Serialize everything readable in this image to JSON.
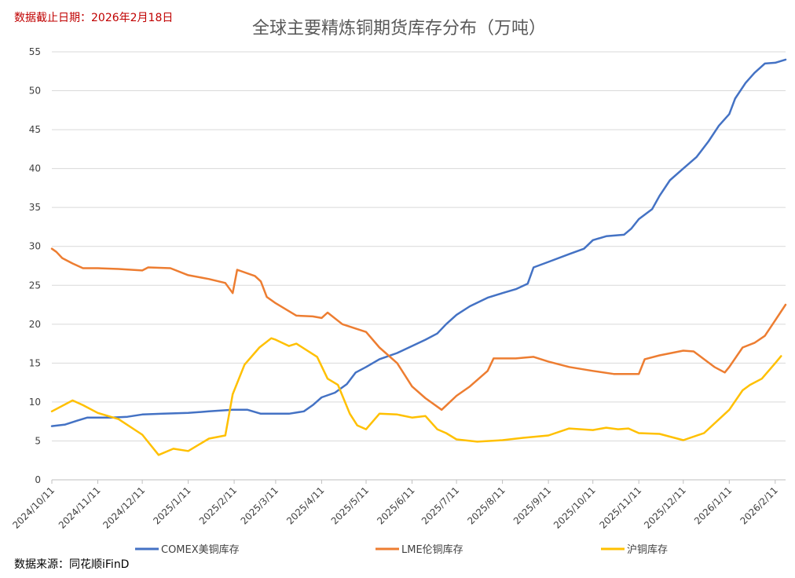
{
  "header": {
    "date_note": "数据截止日期：2026年2月18日"
  },
  "footer": {
    "source_note": "数据来源：同花顺iFinD"
  },
  "chart_data": {
    "type": "line",
    "title": "全球主要精炼铜期货库存分布（万吨）",
    "xlabel": "",
    "ylabel": "",
    "ylim": [
      0,
      55
    ],
    "yticks": [
      0,
      5,
      10,
      15,
      20,
      25,
      30,
      35,
      40,
      45,
      50,
      55
    ],
    "x_tick_labels": [
      "2024/10/11",
      "2024/11/11",
      "2024/12/11",
      "2025/1/11",
      "2025/2/11",
      "2025/3/11",
      "2025/4/11",
      "2025/5/11",
      "2025/6/11",
      "2025/7/11",
      "2025/8/11",
      "2025/9/11",
      "2025/10/11",
      "2025/11/11",
      "2025/12/11",
      "2026/1/11",
      "2026/2/11"
    ],
    "x_range": [
      "2024-10-11",
      "2026-02-18"
    ],
    "grid": true,
    "legend_position": "bottom",
    "series": [
      {
        "name": "COMEX美铜库存",
        "color": "#4472c4",
        "points": [
          [
            "2024-10-11",
            6.9
          ],
          [
            "2024-10-20",
            7.1
          ],
          [
            "2024-10-28",
            7.6
          ],
          [
            "2024-11-04",
            8.0
          ],
          [
            "2024-11-20",
            8.0
          ],
          [
            "2024-12-01",
            8.1
          ],
          [
            "2024-12-11",
            8.4
          ],
          [
            "2024-12-25",
            8.5
          ],
          [
            "2025-01-11",
            8.6
          ],
          [
            "2025-01-25",
            8.8
          ],
          [
            "2025-02-10",
            9.0
          ],
          [
            "2025-02-20",
            9.0
          ],
          [
            "2025-03-01",
            8.5
          ],
          [
            "2025-03-20",
            8.5
          ],
          [
            "2025-03-30",
            8.8
          ],
          [
            "2025-04-05",
            9.6
          ],
          [
            "2025-04-11",
            10.6
          ],
          [
            "2025-04-20",
            11.2
          ],
          [
            "2025-04-28",
            12.3
          ],
          [
            "2025-05-04",
            13.8
          ],
          [
            "2025-05-11",
            14.5
          ],
          [
            "2025-05-20",
            15.5
          ],
          [
            "2025-06-01",
            16.3
          ],
          [
            "2025-06-11",
            17.2
          ],
          [
            "2025-06-20",
            18.0
          ],
          [
            "2025-06-28",
            18.8
          ],
          [
            "2025-07-04",
            20.0
          ],
          [
            "2025-07-11",
            21.2
          ],
          [
            "2025-07-20",
            22.3
          ],
          [
            "2025-08-01",
            23.4
          ],
          [
            "2025-08-11",
            24.0
          ],
          [
            "2025-08-20",
            24.5
          ],
          [
            "2025-08-28",
            25.2
          ],
          [
            "2025-09-01",
            27.3
          ],
          [
            "2025-09-11",
            28.0
          ],
          [
            "2025-09-25",
            29.0
          ],
          [
            "2025-10-05",
            29.7
          ],
          [
            "2025-10-11",
            30.8
          ],
          [
            "2025-10-20",
            31.3
          ],
          [
            "2025-11-01",
            31.5
          ],
          [
            "2025-11-06",
            32.3
          ],
          [
            "2025-11-11",
            33.5
          ],
          [
            "2025-11-20",
            34.8
          ],
          [
            "2025-11-25",
            36.5
          ],
          [
            "2025-12-02",
            38.5
          ],
          [
            "2025-12-11",
            40.0
          ],
          [
            "2025-12-20",
            41.5
          ],
          [
            "2025-12-28",
            43.5
          ],
          [
            "2026-01-04",
            45.5
          ],
          [
            "2026-01-11",
            47.0
          ],
          [
            "2026-01-15",
            49.0
          ],
          [
            "2026-01-22",
            51.0
          ],
          [
            "2026-01-28",
            52.3
          ],
          [
            "2026-02-04",
            53.5
          ],
          [
            "2026-02-11",
            53.6
          ],
          [
            "2026-02-18",
            54.0
          ]
        ]
      },
      {
        "name": "LME伦铜库存",
        "color": "#ed7d31",
        "points": [
          [
            "2024-10-11",
            29.7
          ],
          [
            "2024-10-14",
            29.3
          ],
          [
            "2024-10-18",
            28.5
          ],
          [
            "2024-10-25",
            27.8
          ],
          [
            "2024-11-01",
            27.2
          ],
          [
            "2024-11-11",
            27.2
          ],
          [
            "2024-11-25",
            27.1
          ],
          [
            "2024-12-11",
            26.9
          ],
          [
            "2024-12-15",
            27.3
          ],
          [
            "2024-12-30",
            27.2
          ],
          [
            "2025-01-11",
            26.3
          ],
          [
            "2025-01-25",
            25.8
          ],
          [
            "2025-02-05",
            25.3
          ],
          [
            "2025-02-10",
            24.0
          ],
          [
            "2025-02-13",
            27.0
          ],
          [
            "2025-02-25",
            26.2
          ],
          [
            "2025-03-01",
            25.5
          ],
          [
            "2025-03-05",
            23.5
          ],
          [
            "2025-03-11",
            22.7
          ],
          [
            "2025-03-25",
            21.1
          ],
          [
            "2025-04-05",
            21.0
          ],
          [
            "2025-04-11",
            20.8
          ],
          [
            "2025-04-15",
            21.5
          ],
          [
            "2025-04-25",
            20.0
          ],
          [
            "2025-05-11",
            19.0
          ],
          [
            "2025-05-20",
            17.0
          ],
          [
            "2025-06-01",
            15.0
          ],
          [
            "2025-06-11",
            12.0
          ],
          [
            "2025-06-20",
            10.5
          ],
          [
            "2025-07-01",
            9.0
          ],
          [
            "2025-07-11",
            10.8
          ],
          [
            "2025-07-20",
            12.0
          ],
          [
            "2025-08-01",
            14.0
          ],
          [
            "2025-08-05",
            15.6
          ],
          [
            "2025-08-20",
            15.6
          ],
          [
            "2025-09-01",
            15.8
          ],
          [
            "2025-09-11",
            15.2
          ],
          [
            "2025-09-25",
            14.5
          ],
          [
            "2025-10-11",
            14.0
          ],
          [
            "2025-10-25",
            13.6
          ],
          [
            "2025-11-11",
            13.6
          ],
          [
            "2025-11-15",
            15.5
          ],
          [
            "2025-11-25",
            16.0
          ],
          [
            "2025-12-11",
            16.6
          ],
          [
            "2025-12-18",
            16.5
          ],
          [
            "2025-12-25",
            15.5
          ],
          [
            "2026-01-01",
            14.5
          ],
          [
            "2026-01-08",
            13.8
          ],
          [
            "2026-01-11",
            14.5
          ],
          [
            "2026-01-20",
            17.0
          ],
          [
            "2026-01-28",
            17.6
          ],
          [
            "2026-02-04",
            18.5
          ],
          [
            "2026-02-11",
            20.5
          ],
          [
            "2026-02-18",
            22.5
          ]
        ]
      },
      {
        "name": "沪铜库存",
        "color": "#ffc000",
        "points": [
          [
            "2024-10-11",
            8.8
          ],
          [
            "2024-10-25",
            10.2
          ],
          [
            "2024-11-01",
            9.6
          ],
          [
            "2024-11-11",
            8.6
          ],
          [
            "2024-11-25",
            7.8
          ],
          [
            "2024-12-11",
            5.8
          ],
          [
            "2024-12-22",
            3.2
          ],
          [
            "2025-01-01",
            4.0
          ],
          [
            "2025-01-11",
            3.7
          ],
          [
            "2025-01-25",
            5.3
          ],
          [
            "2025-02-05",
            5.7
          ],
          [
            "2025-02-10",
            11.0
          ],
          [
            "2025-02-18",
            14.8
          ],
          [
            "2025-02-28",
            17.0
          ],
          [
            "2025-03-08",
            18.2
          ],
          [
            "2025-03-11",
            18.0
          ],
          [
            "2025-03-20",
            17.2
          ],
          [
            "2025-03-25",
            17.5
          ],
          [
            "2025-04-08",
            15.8
          ],
          [
            "2025-04-15",
            13.0
          ],
          [
            "2025-04-22",
            12.2
          ],
          [
            "2025-04-30",
            8.5
          ],
          [
            "2025-05-05",
            7.0
          ],
          [
            "2025-05-11",
            6.5
          ],
          [
            "2025-05-20",
            8.5
          ],
          [
            "2025-06-01",
            8.4
          ],
          [
            "2025-06-11",
            8.0
          ],
          [
            "2025-06-20",
            8.2
          ],
          [
            "2025-06-28",
            6.5
          ],
          [
            "2025-07-04",
            6.0
          ],
          [
            "2025-07-11",
            5.2
          ],
          [
            "2025-07-25",
            4.9
          ],
          [
            "2025-08-11",
            5.1
          ],
          [
            "2025-08-25",
            5.4
          ],
          [
            "2025-09-11",
            5.7
          ],
          [
            "2025-09-25",
            6.6
          ],
          [
            "2025-10-11",
            6.4
          ],
          [
            "2025-10-20",
            6.7
          ],
          [
            "2025-10-28",
            6.5
          ],
          [
            "2025-11-04",
            6.6
          ],
          [
            "2025-11-11",
            6.0
          ],
          [
            "2025-11-25",
            5.9
          ],
          [
            "2025-12-11",
            5.1
          ],
          [
            "2025-12-25",
            6.0
          ],
          [
            "2026-01-11",
            9.0
          ],
          [
            "2026-01-20",
            11.5
          ],
          [
            "2026-01-25",
            12.2
          ],
          [
            "2026-02-02",
            13.0
          ],
          [
            "2026-02-11",
            15.0
          ],
          [
            "2026-02-15",
            15.9
          ]
        ]
      }
    ]
  }
}
